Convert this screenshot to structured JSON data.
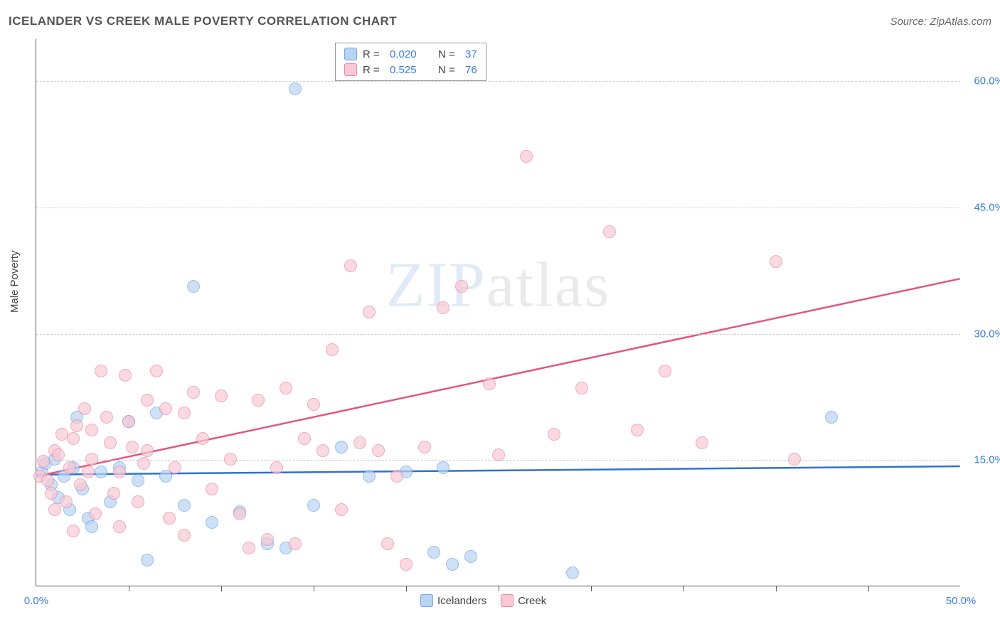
{
  "title": "ICELANDER VS CREEK MALE POVERTY CORRELATION CHART",
  "source": "Source: ZipAtlas.com",
  "ylabel": "Male Poverty",
  "watermark_a": "ZIP",
  "watermark_b": "atlas",
  "chart": {
    "type": "scatter",
    "xlim": [
      0,
      50
    ],
    "ylim": [
      0,
      65
    ],
    "x_start_label": "0.0%",
    "x_end_label": "50.0%",
    "yticks": [
      {
        "v": 15,
        "label": "15.0%"
      },
      {
        "v": 30,
        "label": "30.0%"
      },
      {
        "v": 45,
        "label": "45.0%"
      },
      {
        "v": 60,
        "label": "60.0%"
      }
    ],
    "xticks_minor": [
      5,
      10,
      15,
      20,
      25,
      30,
      35,
      40,
      45
    ],
    "background_color": "#ffffff",
    "grid_color": "#cccccc",
    "point_radius": 9,
    "series": [
      {
        "name": "Icelanders",
        "color_fill": "#b9d4f3",
        "color_stroke": "#6ea7e8",
        "R": "0.020",
        "N": "37",
        "trend": {
          "y0": 13.2,
          "y1": 14.2,
          "color": "#2d72d0",
          "width": 2.5
        },
        "points": [
          [
            0.3,
            13.5
          ],
          [
            0.5,
            14.5
          ],
          [
            0.8,
            12.0
          ],
          [
            1.0,
            15.0
          ],
          [
            1.2,
            10.5
          ],
          [
            1.5,
            13.0
          ],
          [
            1.8,
            9.0
          ],
          [
            2.0,
            14.0
          ],
          [
            2.2,
            20.0
          ],
          [
            2.5,
            11.5
          ],
          [
            2.8,
            8.0
          ],
          [
            3.0,
            7.0
          ],
          [
            3.5,
            13.5
          ],
          [
            4.0,
            10.0
          ],
          [
            4.5,
            14.0
          ],
          [
            5.0,
            19.5
          ],
          [
            5.5,
            12.5
          ],
          [
            6.0,
            3.0
          ],
          [
            6.5,
            20.5
          ],
          [
            7.0,
            13.0
          ],
          [
            8.0,
            9.5
          ],
          [
            8.5,
            35.5
          ],
          [
            9.5,
            7.5
          ],
          [
            11.0,
            8.8
          ],
          [
            12.5,
            5.0
          ],
          [
            13.5,
            4.5
          ],
          [
            14.0,
            59.0
          ],
          [
            15.0,
            9.5
          ],
          [
            16.5,
            16.5
          ],
          [
            18.0,
            13.0
          ],
          [
            20.0,
            13.5
          ],
          [
            21.5,
            4.0
          ],
          [
            22.5,
            2.5
          ],
          [
            23.5,
            3.5
          ],
          [
            29.0,
            1.5
          ],
          [
            43.0,
            20.0
          ],
          [
            22.0,
            14.0
          ]
        ]
      },
      {
        "name": "Creek",
        "color_fill": "#f8c9d4",
        "color_stroke": "#e88aa3",
        "R": "0.525",
        "N": "76",
        "trend": {
          "y0": 13.0,
          "y1": 36.5,
          "color": "#e4557e",
          "width": 2.5
        },
        "points": [
          [
            0.2,
            13.0
          ],
          [
            0.4,
            14.8
          ],
          [
            0.6,
            12.5
          ],
          [
            0.8,
            11.0
          ],
          [
            1.0,
            16.0
          ],
          [
            1.2,
            15.5
          ],
          [
            1.4,
            18.0
          ],
          [
            1.6,
            10.0
          ],
          [
            1.8,
            14.0
          ],
          [
            2.0,
            17.5
          ],
          [
            2.2,
            19.0
          ],
          [
            2.4,
            12.0
          ],
          [
            2.6,
            21.0
          ],
          [
            2.8,
            13.5
          ],
          [
            3.0,
            15.0
          ],
          [
            3.2,
            8.5
          ],
          [
            3.5,
            25.5
          ],
          [
            3.8,
            20.0
          ],
          [
            4.0,
            17.0
          ],
          [
            4.2,
            11.0
          ],
          [
            4.5,
            13.5
          ],
          [
            4.8,
            25.0
          ],
          [
            5.0,
            19.5
          ],
          [
            5.2,
            16.5
          ],
          [
            5.5,
            10.0
          ],
          [
            5.8,
            14.5
          ],
          [
            6.0,
            22.0
          ],
          [
            6.5,
            25.5
          ],
          [
            7.0,
            21.0
          ],
          [
            7.2,
            8.0
          ],
          [
            7.5,
            14.0
          ],
          [
            8.0,
            20.5
          ],
          [
            8.5,
            23.0
          ],
          [
            9.0,
            17.5
          ],
          [
            9.5,
            11.5
          ],
          [
            10.0,
            22.5
          ],
          [
            10.5,
            15.0
          ],
          [
            11.0,
            8.5
          ],
          [
            11.5,
            4.5
          ],
          [
            12.0,
            22.0
          ],
          [
            12.5,
            5.5
          ],
          [
            13.0,
            14.0
          ],
          [
            13.5,
            23.5
          ],
          [
            14.0,
            5.0
          ],
          [
            15.0,
            21.5
          ],
          [
            15.5,
            16.0
          ],
          [
            16.0,
            28.0
          ],
          [
            16.5,
            9.0
          ],
          [
            17.0,
            38.0
          ],
          [
            17.5,
            17.0
          ],
          [
            18.0,
            32.5
          ],
          [
            18.5,
            16.0
          ],
          [
            19.0,
            5.0
          ],
          [
            20.0,
            2.5
          ],
          [
            21.0,
            16.5
          ],
          [
            22.0,
            33.0
          ],
          [
            23.0,
            35.5
          ],
          [
            24.5,
            24.0
          ],
          [
            25.0,
            15.5
          ],
          [
            26.5,
            51.0
          ],
          [
            28.0,
            18.0
          ],
          [
            29.5,
            23.5
          ],
          [
            31.0,
            42.0
          ],
          [
            32.5,
            18.5
          ],
          [
            34.0,
            25.5
          ],
          [
            36.0,
            17.0
          ],
          [
            40.0,
            38.5
          ],
          [
            41.0,
            15.0
          ],
          [
            1.0,
            9.0
          ],
          [
            2.0,
            6.5
          ],
          [
            3.0,
            18.5
          ],
          [
            4.5,
            7.0
          ],
          [
            6.0,
            16.0
          ],
          [
            8.0,
            6.0
          ],
          [
            14.5,
            17.5
          ],
          [
            19.5,
            13.0
          ]
        ]
      }
    ]
  },
  "legend_top": {
    "r_label": "R =",
    "n_label": "N ="
  }
}
